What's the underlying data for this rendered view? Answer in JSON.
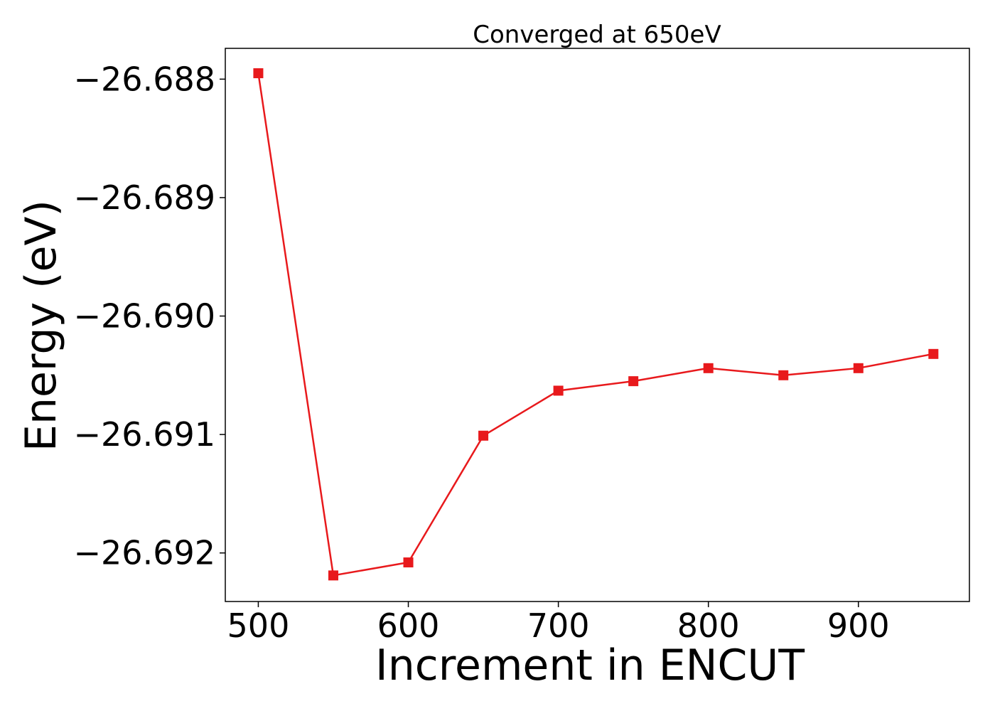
{
  "chart_data": {
    "type": "line",
    "title": "Converged at 650eV",
    "xlabel": "Increment in ENCUT",
    "ylabel": "Energy (eV)",
    "x": [
      500,
      550,
      600,
      650,
      700,
      750,
      800,
      850,
      900,
      950
    ],
    "series": [
      {
        "values": [
          -26.68795,
          -26.69219,
          -26.69208,
          -26.69101,
          -26.69063,
          -26.69055,
          -26.69044,
          -26.6905,
          -26.69044,
          -26.69032
        ],
        "color": "#e8191c",
        "marker": "square"
      }
    ],
    "xlim": [
      478,
      974
    ],
    "ylim": [
      -26.69241,
      -26.68774
    ],
    "xticks": [
      500,
      600,
      700,
      800,
      900
    ],
    "xtick_labels": [
      "500",
      "600",
      "700",
      "800",
      "900"
    ],
    "yticks": [
      -26.688,
      -26.689,
      -26.69,
      -26.691,
      -26.692
    ],
    "ytick_labels": [
      "−26.688",
      "−26.689",
      "−26.690",
      "−26.691",
      "−26.692"
    ],
    "grid": false,
    "legend": false
  }
}
